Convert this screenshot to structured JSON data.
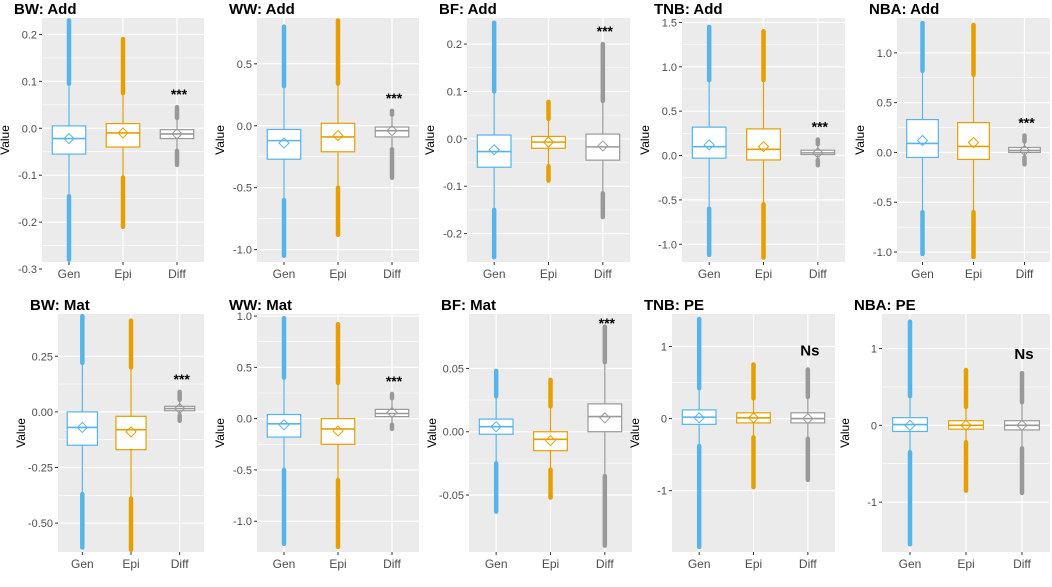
{
  "figure": {
    "colors": {
      "gen": "#56B4E9",
      "epi": "#E69F00",
      "diff": "#999999",
      "panel_bg": "#EBEBEB",
      "grid": "#FFFFFF"
    },
    "ylabel": "Value",
    "categories": [
      "Gen",
      "Epi",
      "Diff"
    ]
  },
  "chart_data": [
    {
      "type": "box",
      "title": "BW: Add",
      "ylabel": "Value",
      "categories": [
        "Gen",
        "Epi",
        "Diff"
      ],
      "ylim": [
        -0.285,
        0.235
      ],
      "yticks": [
        0.2,
        0.1,
        0.0,
        -0.1,
        -0.2,
        -0.3
      ],
      "ytick_labels": [
        "0.2",
        "0.1",
        "0.0",
        "-0.1",
        "-0.2",
        "-0.3"
      ],
      "annotation": "***",
      "series": [
        {
          "name": "Gen",
          "q1": -0.055,
          "median": -0.022,
          "q3": 0.005,
          "mean": -0.022,
          "whisker_low": -0.145,
          "whisker_high": 0.095,
          "out_low": -0.28,
          "out_high": 0.23
        },
        {
          "name": "Epi",
          "q1": -0.04,
          "median": -0.01,
          "q3": 0.01,
          "mean": -0.01,
          "whisker_low": -0.105,
          "whisker_high": 0.075,
          "out_low": -0.21,
          "out_high": 0.19
        },
        {
          "name": "Diff",
          "q1": -0.022,
          "median": -0.012,
          "q3": -0.003,
          "mean": -0.012,
          "whisker_low": -0.048,
          "whisker_high": 0.022,
          "out_low": -0.078,
          "out_high": 0.045
        }
      ]
    },
    {
      "type": "box",
      "title": "WW: Add",
      "ylabel": "Value",
      "categories": [
        "Gen",
        "Epi",
        "Diff"
      ],
      "ylim": [
        -1.1,
        0.87
      ],
      "yticks": [
        0.5,
        0.0,
        -0.5,
        -1.0
      ],
      "ytick_labels": [
        "0.5",
        "0.0",
        "-0.5",
        "-1.0"
      ],
      "annotation": "***",
      "series": [
        {
          "name": "Gen",
          "q1": -0.27,
          "median": -0.12,
          "q3": -0.03,
          "mean": -0.14,
          "whisker_low": -0.6,
          "whisker_high": 0.32,
          "out_low": -1.05,
          "out_high": 0.8
        },
        {
          "name": "Epi",
          "q1": -0.21,
          "median": -0.09,
          "q3": 0.02,
          "mean": -0.08,
          "whisker_low": -0.5,
          "whisker_high": 0.34,
          "out_low": -0.88,
          "out_high": 0.85
        },
        {
          "name": "Diff",
          "q1": -0.09,
          "median": -0.04,
          "q3": -0.01,
          "mean": -0.04,
          "whisker_low": -0.19,
          "whisker_high": 0.09,
          "out_low": -0.42,
          "out_high": 0.12
        }
      ]
    },
    {
      "type": "box",
      "title": "BF: Add",
      "ylabel": "Value",
      "categories": [
        "Gen",
        "Epi",
        "Diff"
      ],
      "ylim": [
        -0.26,
        0.255
      ],
      "yticks": [
        0.2,
        0.1,
        0.0,
        -0.1,
        -0.2
      ],
      "ytick_labels": [
        "0.2",
        "0.1",
        "0.0",
        "-0.1",
        "-0.2"
      ],
      "annotation": "***",
      "series": [
        {
          "name": "Gen",
          "q1": -0.06,
          "median": -0.027,
          "q3": 0.008,
          "mean": -0.023,
          "whisker_low": -0.15,
          "whisker_high": 0.1,
          "out_low": -0.25,
          "out_high": 0.245
        },
        {
          "name": "Epi",
          "q1": -0.02,
          "median": -0.007,
          "q3": 0.005,
          "mean": -0.007,
          "whisker_low": -0.058,
          "whisker_high": 0.042,
          "out_low": -0.088,
          "out_high": 0.078
        },
        {
          "name": "Diff",
          "q1": -0.045,
          "median": -0.017,
          "q3": 0.01,
          "mean": -0.015,
          "whisker_low": -0.115,
          "whisker_high": 0.08,
          "out_low": -0.165,
          "out_high": 0.2
        }
      ]
    },
    {
      "type": "box",
      "title": "TNB: Add",
      "ylabel": "Value",
      "categories": [
        "Gen",
        "Epi",
        "Diff"
      ],
      "ylim": [
        -1.2,
        1.55
      ],
      "yticks": [
        1.5,
        1.0,
        0.5,
        0.0,
        -0.5,
        -1.0
      ],
      "ytick_labels": [
        "1.5",
        "1.0",
        "0.5",
        "0.0",
        "-0.5",
        "-1.0"
      ],
      "annotation": "***",
      "series": [
        {
          "name": "Gen",
          "q1": -0.03,
          "median": 0.1,
          "q3": 0.32,
          "mean": 0.12,
          "whisker_low": -0.6,
          "whisker_high": 0.85,
          "out_low": -1.12,
          "out_high": 1.45
        },
        {
          "name": "Epi",
          "q1": -0.05,
          "median": 0.07,
          "q3": 0.3,
          "mean": 0.1,
          "whisker_low": -0.55,
          "whisker_high": 0.85,
          "out_low": -1.15,
          "out_high": 1.4
        },
        {
          "name": "Diff",
          "q1": 0.01,
          "median": 0.03,
          "q3": 0.06,
          "mean": 0.03,
          "whisker_low": -0.05,
          "whisker_high": 0.13,
          "out_low": -0.11,
          "out_high": 0.18
        }
      ]
    },
    {
      "type": "box",
      "title": "NBA: Add",
      "ylabel": "Value",
      "categories": [
        "Gen",
        "Epi",
        "Diff"
      ],
      "ylim": [
        -1.1,
        1.35
      ],
      "yticks": [
        1.0,
        0.5,
        0.0,
        -0.5,
        -1.0
      ],
      "ytick_labels": [
        "1.0",
        "0.5",
        "0.0",
        "-0.5",
        "-1.0"
      ],
      "annotation": "***",
      "series": [
        {
          "name": "Gen",
          "q1": -0.05,
          "median": 0.09,
          "q3": 0.33,
          "mean": 0.12,
          "whisker_low": -0.6,
          "whisker_high": 0.82,
          "out_low": -1.02,
          "out_high": 1.3
        },
        {
          "name": "Epi",
          "q1": -0.07,
          "median": 0.06,
          "q3": 0.3,
          "mean": 0.1,
          "whisker_low": -0.6,
          "whisker_high": 0.78,
          "out_low": -1.05,
          "out_high": 1.28
        },
        {
          "name": "Diff",
          "q1": 0.0,
          "median": 0.02,
          "q3": 0.05,
          "mean": 0.02,
          "whisker_low": -0.05,
          "whisker_high": 0.11,
          "out_low": -0.12,
          "out_high": 0.17
        }
      ]
    },
    {
      "type": "box",
      "title": "BW: Mat",
      "ylabel": "Value",
      "categories": [
        "Gen",
        "Epi",
        "Diff"
      ],
      "ylim": [
        -0.63,
        0.44
      ],
      "yticks": [
        0.25,
        0.0,
        -0.25,
        -0.5
      ],
      "ytick_labels": [
        "0.25",
        "0.00",
        "-0.25",
        "-0.50"
      ],
      "annotation": "***",
      "series": [
        {
          "name": "Gen",
          "q1": -0.15,
          "median": -0.07,
          "q3": 0.0,
          "mean": -0.07,
          "whisker_low": -0.37,
          "whisker_high": 0.22,
          "out_low": -0.61,
          "out_high": 0.43
        },
        {
          "name": "Epi",
          "q1": -0.17,
          "median": -0.08,
          "q3": -0.02,
          "mean": -0.09,
          "whisker_low": -0.39,
          "whisker_high": 0.2,
          "out_low": -0.62,
          "out_high": 0.41
        },
        {
          "name": "Diff",
          "q1": 0.005,
          "median": 0.015,
          "q3": 0.025,
          "mean": 0.015,
          "whisker_low": -0.015,
          "whisker_high": 0.055,
          "out_low": -0.04,
          "out_high": 0.09
        }
      ]
    },
    {
      "type": "box",
      "title": "WW: Mat",
      "ylabel": "Value",
      "categories": [
        "Gen",
        "Epi",
        "Diff"
      ],
      "ylim": [
        -1.3,
        1.02
      ],
      "yticks": [
        1.0,
        0.5,
        0.0,
        -0.5,
        -1.0
      ],
      "ytick_labels": [
        "1.0",
        "0.5",
        "0.0",
        "-0.5",
        "-1.0"
      ],
      "annotation": "***",
      "series": [
        {
          "name": "Gen",
          "q1": -0.18,
          "median": -0.05,
          "q3": 0.04,
          "mean": -0.06,
          "whisker_low": -0.5,
          "whisker_high": 0.4,
          "out_low": -1.22,
          "out_high": 0.98
        },
        {
          "name": "Epi",
          "q1": -0.25,
          "median": -0.1,
          "q3": 0.0,
          "mean": -0.12,
          "whisker_low": -0.6,
          "whisker_high": 0.35,
          "out_low": -1.25,
          "out_high": 0.92
        },
        {
          "name": "Diff",
          "q1": 0.02,
          "median": 0.05,
          "q3": 0.09,
          "mean": 0.06,
          "whisker_low": -0.06,
          "whisker_high": 0.2,
          "out_low": -0.1,
          "out_high": 0.24
        }
      ]
    },
    {
      "type": "box",
      "title": "BF: Mat",
      "ylabel": "Value",
      "categories": [
        "Gen",
        "Epi",
        "Diff"
      ],
      "ylim": [
        -0.095,
        0.093
      ],
      "yticks": [
        0.05,
        0.0,
        -0.05
      ],
      "ytick_labels": [
        "0.05",
        "0.00",
        "-0.05"
      ],
      "annotation": "***",
      "series": [
        {
          "name": "Gen",
          "q1": -0.002,
          "median": 0.004,
          "q3": 0.01,
          "mean": 0.004,
          "whisker_low": -0.025,
          "whisker_high": 0.028,
          "out_low": -0.063,
          "out_high": 0.048
        },
        {
          "name": "Epi",
          "q1": -0.015,
          "median": -0.006,
          "q3": 0.0,
          "mean": -0.007,
          "whisker_low": -0.03,
          "whisker_high": 0.02,
          "out_low": -0.052,
          "out_high": 0.041
        },
        {
          "name": "Diff",
          "q1": 0.0,
          "median": 0.012,
          "q3": 0.022,
          "mean": 0.011,
          "whisker_low": -0.035,
          "whisker_high": 0.055,
          "out_low": -0.09,
          "out_high": 0.083
        }
      ]
    },
    {
      "type": "box",
      "title": "TNB: PE",
      "ylabel": "Value",
      "categories": [
        "Gen",
        "Epi",
        "Diff"
      ],
      "ylim": [
        -1.85,
        1.45
      ],
      "yticks": [
        1.0,
        0.0,
        -1.0
      ],
      "ytick_labels": [
        "1",
        "0",
        "-1"
      ],
      "annotation": "Ns",
      "series": [
        {
          "name": "Gen",
          "q1": -0.08,
          "median": 0.02,
          "q3": 0.12,
          "mean": 0.01,
          "whisker_low": -0.38,
          "whisker_high": 0.42,
          "out_low": -1.78,
          "out_high": 1.38
        },
        {
          "name": "Epi",
          "q1": -0.06,
          "median": 0.01,
          "q3": 0.08,
          "mean": 0.01,
          "whisker_low": -0.26,
          "whisker_high": 0.28,
          "out_low": -0.95,
          "out_high": 0.75
        },
        {
          "name": "Diff",
          "q1": -0.06,
          "median": 0.0,
          "q3": 0.08,
          "mean": 0.0,
          "whisker_low": -0.28,
          "whisker_high": 0.3,
          "out_low": -0.85,
          "out_high": 0.68
        }
      ]
    },
    {
      "type": "box",
      "title": "NBA: PE",
      "ylabel": "Value",
      "categories": [
        "Gen",
        "Epi",
        "Diff"
      ],
      "ylim": [
        -1.65,
        1.45
      ],
      "yticks": [
        1.0,
        0.0,
        -1.0
      ],
      "ytick_labels": [
        "1",
        "0",
        "-1"
      ],
      "annotation": "Ns",
      "series": [
        {
          "name": "Gen",
          "q1": -0.08,
          "median": 0.01,
          "q3": 0.1,
          "mean": 0.0,
          "whisker_low": -0.35,
          "whisker_high": 0.38,
          "out_low": -1.55,
          "out_high": 1.35
        },
        {
          "name": "Epi",
          "q1": -0.05,
          "median": 0.0,
          "q3": 0.06,
          "mean": 0.0,
          "whisker_low": -0.22,
          "whisker_high": 0.24,
          "out_low": -0.85,
          "out_high": 0.72
        },
        {
          "name": "Diff",
          "q1": -0.06,
          "median": 0.0,
          "q3": 0.06,
          "mean": 0.0,
          "whisker_low": -0.3,
          "whisker_high": 0.3,
          "out_low": -0.88,
          "out_high": 0.68
        }
      ]
    }
  ]
}
